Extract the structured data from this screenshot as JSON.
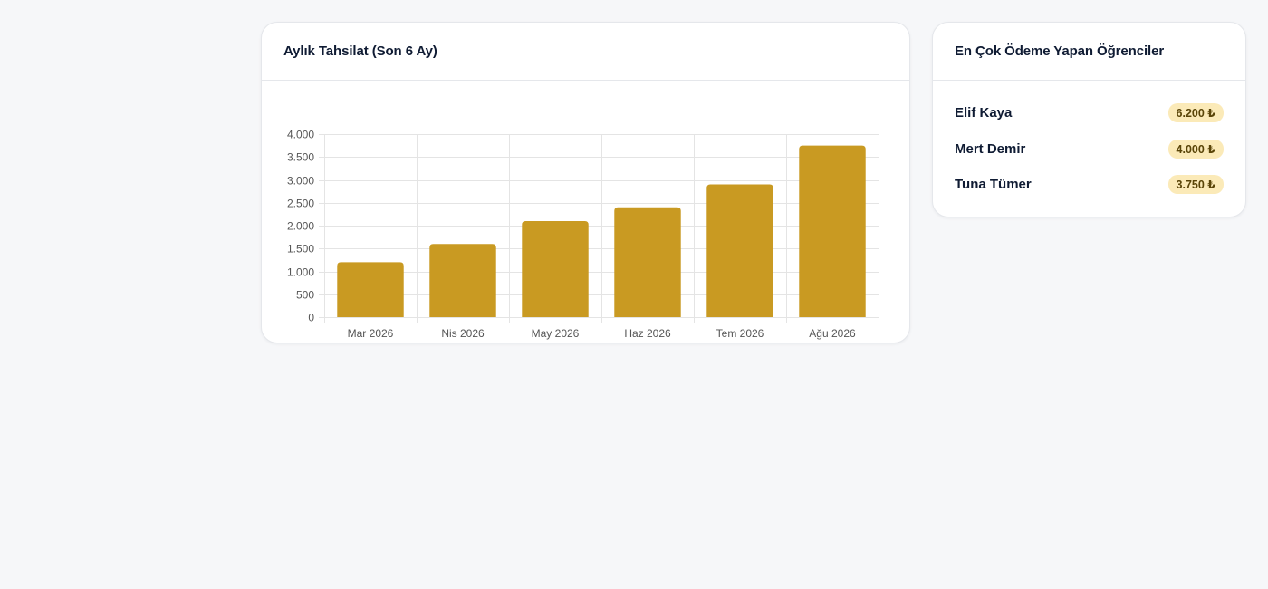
{
  "chart_card": {
    "title": "Aylık Tahsilat (Son 6 Ay)"
  },
  "students_card": {
    "title": "En Çok Ödeme Yapan Öğrenciler",
    "students": [
      {
        "name": "Elif Kaya",
        "amount": "6.200 ₺"
      },
      {
        "name": "Mert Demir",
        "amount": "4.000 ₺"
      },
      {
        "name": "Tuna Tümer",
        "amount": "3.750 ₺"
      }
    ]
  },
  "colors": {
    "bar": "#c99a22",
    "badge_bg": "#fbeab8",
    "grid": "#e4e4e4"
  },
  "chart_data": {
    "type": "bar",
    "title": "Aylık Tahsilat (Son 6 Ay)",
    "categories": [
      "Mar 2026",
      "Nis 2026",
      "May 2026",
      "Haz 2026",
      "Tem 2026",
      "Ağu 2026"
    ],
    "values": [
      1200,
      1600,
      2100,
      2400,
      2900,
      3750
    ],
    "ylim": [
      0,
      4000
    ],
    "yticks": [
      0,
      500,
      1000,
      1500,
      2000,
      2500,
      3000,
      3500,
      4000
    ],
    "ytick_labels": [
      "0",
      "500",
      "1.000",
      "1.500",
      "2.000",
      "2.500",
      "3.000",
      "3.500",
      "4.000"
    ],
    "grid": true,
    "legend": "none"
  }
}
